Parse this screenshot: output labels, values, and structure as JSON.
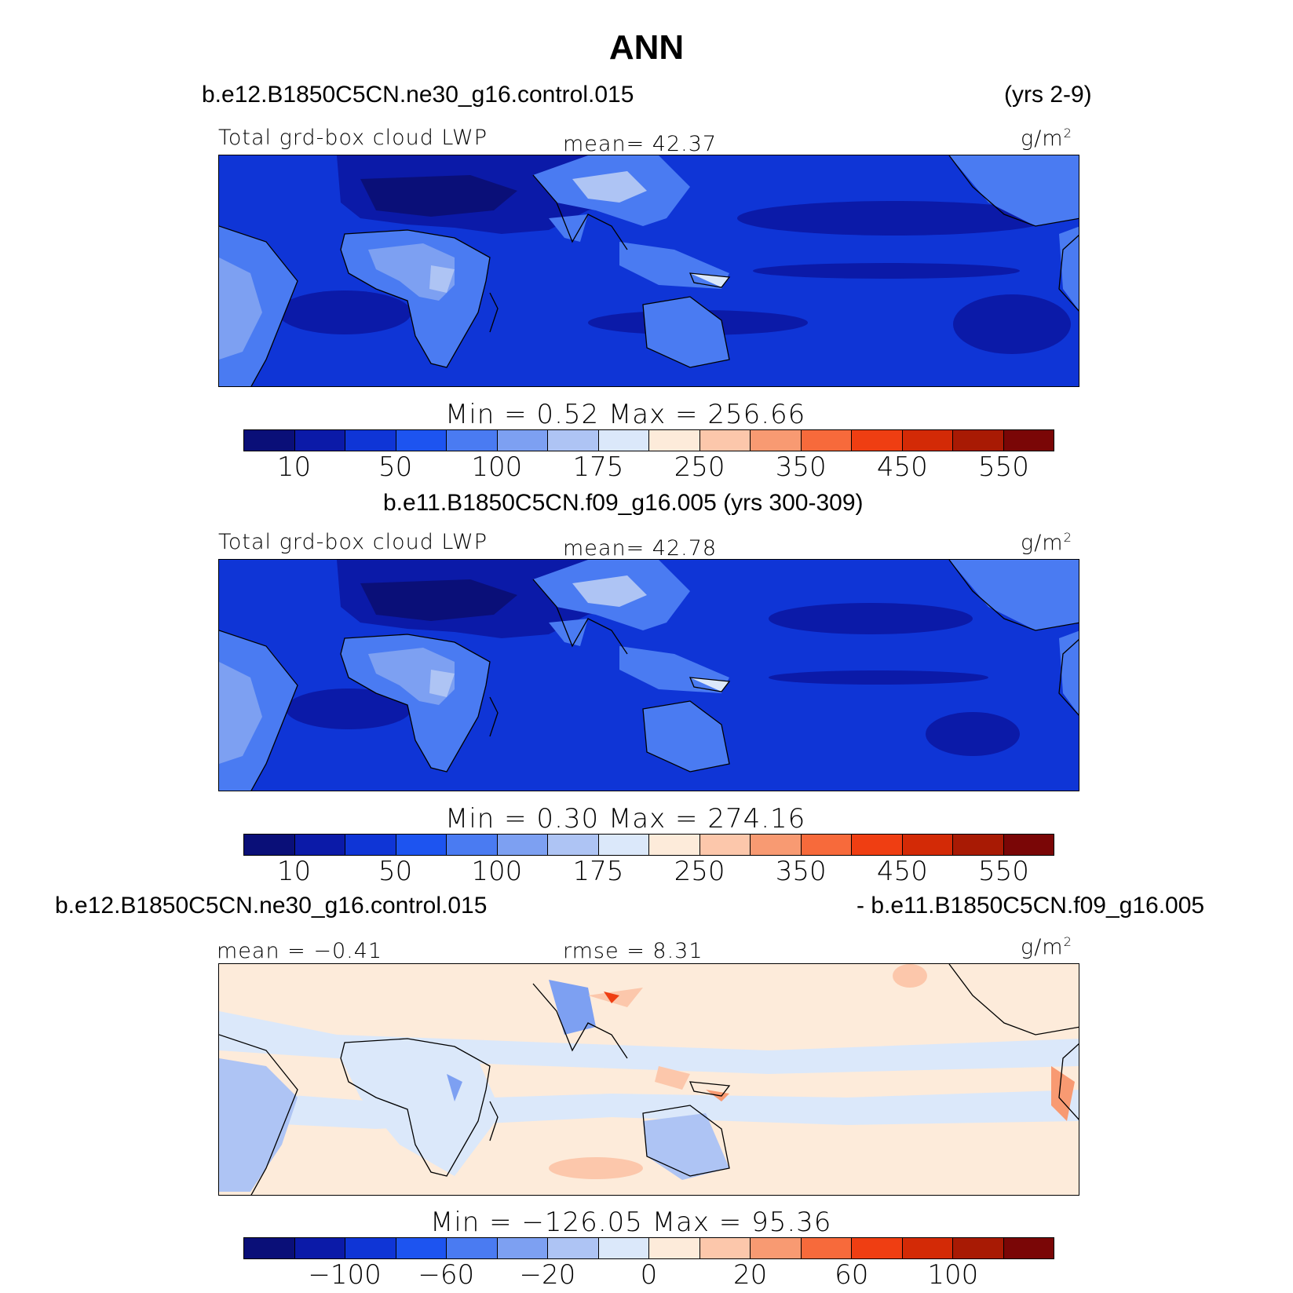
{
  "title": "ANN",
  "panel1": {
    "case": "b.e12.B1850C5CN.ne30_g16.control.015",
    "years": "(yrs 2-9)",
    "variable": "Total grd-box cloud LWP",
    "mean_label": "mean=  42.37",
    "units": "g/m",
    "units_exp": "2",
    "minmax": "Min =    0.52  Max = 256.66"
  },
  "panel2": {
    "case": "b.e11.B1850C5CN.f09_g16.005 (yrs 300-309)",
    "variable": "Total grd-box cloud LWP",
    "mean_label": "mean=  42.78",
    "units": "g/m",
    "units_exp": "2",
    "minmax": "Min =    0.30  Max = 274.16"
  },
  "panel3": {
    "case_left": "b.e12.B1850C5CN.ne30_g16.control.015",
    "case_right": "- b.e11.B1850C5CN.f09_g16.005",
    "mean_label": "mean =  −0.41",
    "rmse_label": "rmse =    8.31",
    "units": "g/m",
    "units_exp": "2",
    "minmax": "Min = −126.05  Max =   95.36"
  },
  "colorbar_colors": [
    "#0a0f78",
    "#0b1aa8",
    "#0f35d6",
    "#1d54f0",
    "#4a7bf2",
    "#7da0f2",
    "#aec4f4",
    "#dbe8fa",
    "#fdebda",
    "#fcc7ab",
    "#f89a72",
    "#f76a3b",
    "#ef3e12",
    "#d32a06",
    "#a81a04",
    "#7a0606"
  ],
  "colorbar_ticks_abs": [
    "10",
    "50",
    "100",
    "175",
    "250",
    "350",
    "450",
    "550"
  ],
  "colorbar_ticks_diff": [
    "−100",
    "−60",
    "−20",
    "0",
    "20",
    "60",
    "100"
  ]
}
